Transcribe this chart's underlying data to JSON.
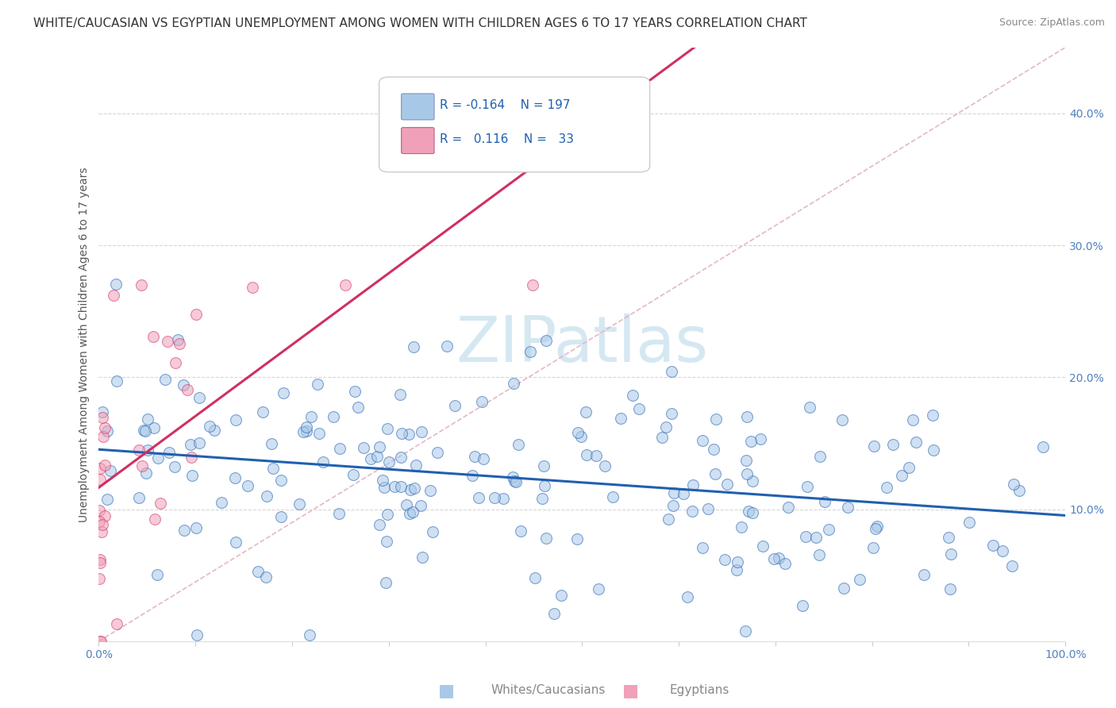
{
  "title": "WHITE/CAUCASIAN VS EGYPTIAN UNEMPLOYMENT AMONG WOMEN WITH CHILDREN AGES 6 TO 17 YEARS CORRELATION CHART",
  "source": "Source: ZipAtlas.com",
  "ylabel": "Unemployment Among Women with Children Ages 6 to 17 years",
  "legend_label1": "Whites/Caucasians",
  "legend_label2": "Egyptians",
  "R1": "-0.164",
  "N1": "197",
  "R2": "0.116",
  "N2": "33",
  "color_blue": "#A8C8E8",
  "color_pink": "#F0A0B8",
  "color_blue_line": "#2060B0",
  "color_pink_line": "#D03060",
  "color_diag_line": "#E0B0C0",
  "background_color": "#FFFFFF",
  "watermark_color": "#D5E8F2",
  "title_fontsize": 11,
  "source_fontsize": 9,
  "axis_fontsize": 10,
  "ylabel_fontsize": 10,
  "xlim": [
    0.0,
    1.0
  ],
  "ylim": [
    0.0,
    0.45
  ]
}
